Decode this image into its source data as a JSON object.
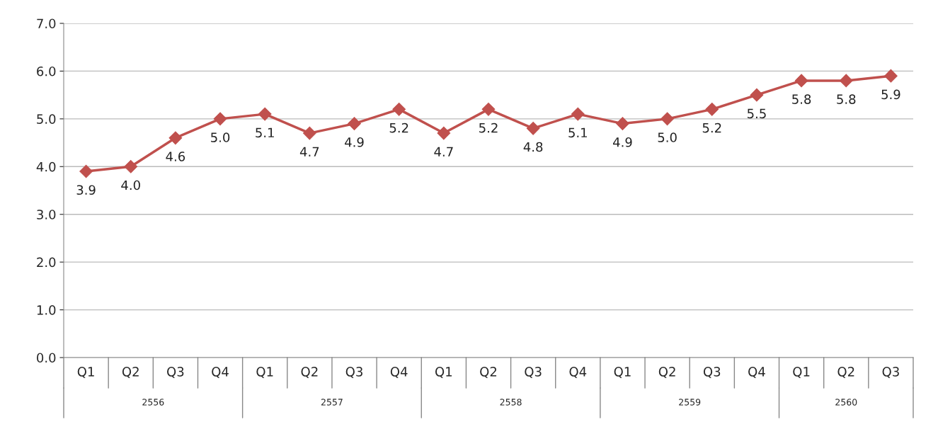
{
  "chart_data": {
    "type": "line",
    "categories": [
      "Q1",
      "Q2",
      "Q3",
      "Q4",
      "Q1",
      "Q2",
      "Q3",
      "Q4",
      "Q1",
      "Q2",
      "Q3",
      "Q4",
      "Q1",
      "Q2",
      "Q3",
      "Q4",
      "Q1",
      "Q2",
      "Q3"
    ],
    "values": [
      3.9,
      4.0,
      4.6,
      5.0,
      5.1,
      4.7,
      4.9,
      5.2,
      4.7,
      5.2,
      4.8,
      5.1,
      4.9,
      5.0,
      5.2,
      5.5,
      5.8,
      5.8,
      5.9
    ],
    "color": "#c0504d",
    "ylim": [
      0,
      7
    ],
    "yticks": [
      {
        "value": 0,
        "label": "0.0"
      },
      {
        "value": 1,
        "label": "1.0"
      },
      {
        "value": 2,
        "label": "2.0"
      },
      {
        "value": 3,
        "label": "3.0"
      },
      {
        "value": 4,
        "label": "4.0"
      },
      {
        "value": 5,
        "label": "5.0"
      },
      {
        "value": 6,
        "label": "6.0"
      },
      {
        "value": 7,
        "label": "7.0"
      }
    ],
    "value_labels": [
      "3.9",
      "4.0",
      "4.6",
      "5.0",
      "5.1",
      "4.7",
      "4.9",
      "5.2",
      "4.7",
      "5.2",
      "4.8",
      "5.1",
      "4.9",
      "5.0",
      "5.2",
      "5.5",
      "5.8",
      "5.8",
      "5.9"
    ],
    "grid": "y",
    "marker": "diamond",
    "line_style": "solid",
    "legend": false,
    "annotations": [
      "2556",
      "2557",
      "2558",
      "2559",
      "2560"
    ]
  }
}
